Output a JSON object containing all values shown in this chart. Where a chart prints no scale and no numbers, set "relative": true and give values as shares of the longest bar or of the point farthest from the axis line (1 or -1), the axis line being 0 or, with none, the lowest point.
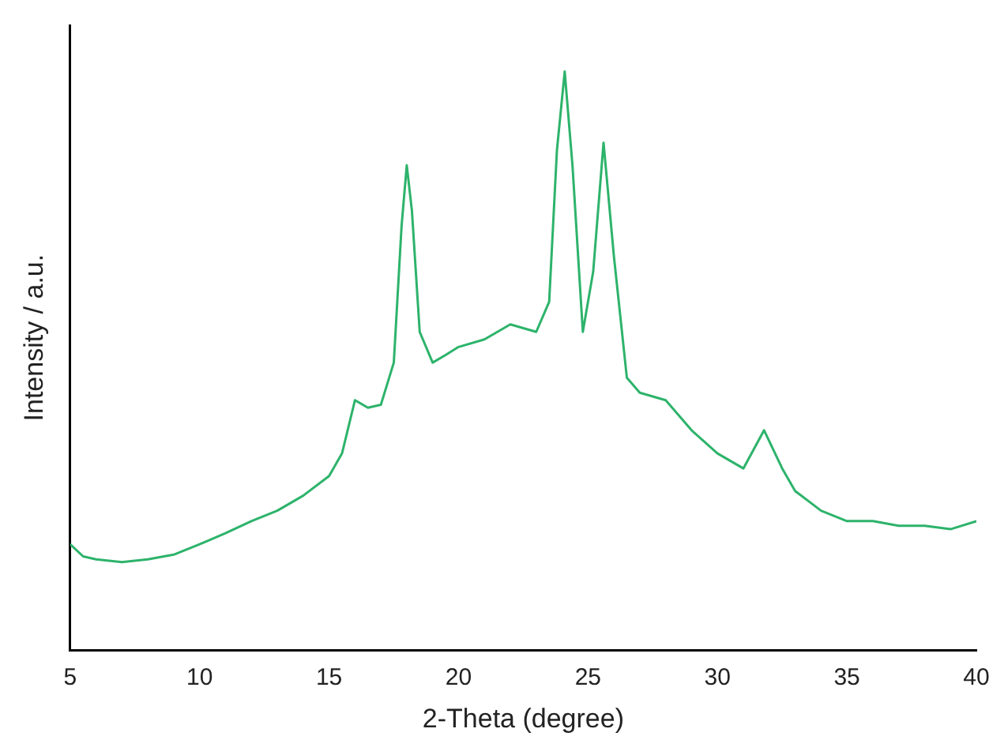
{
  "chart_data": {
    "type": "line",
    "relative": true,
    "xlabel": "2-Theta (degree)",
    "ylabel": "Intensity / a.u.",
    "xlim": [
      5,
      40
    ],
    "xticks": [
      5,
      10,
      15,
      20,
      25,
      30,
      35,
      40
    ],
    "grid": false,
    "legend": false,
    "marker": "none",
    "line_style": "solid",
    "series": [
      {
        "color": "#2db36b",
        "x": [
          5,
          5.5,
          6,
          7,
          8,
          9,
          10,
          11,
          12,
          13,
          14,
          15,
          15.5,
          16,
          16.5,
          17,
          17.5,
          17.8,
          18,
          18.2,
          18.5,
          19,
          19.5,
          20,
          21,
          22,
          23,
          23.5,
          23.8,
          24.1,
          24.4,
          24.8,
          25.2,
          25.6,
          26,
          26.5,
          27,
          28,
          29,
          30,
          31,
          31.8,
          32.5,
          33,
          34,
          35,
          36,
          37,
          38,
          39,
          40
        ],
        "values": [
          0.183,
          0.162,
          0.157,
          0.152,
          0.157,
          0.165,
          0.183,
          0.202,
          0.223,
          0.241,
          0.267,
          0.301,
          0.34,
          0.432,
          0.419,
          0.424,
          0.497,
          0.733,
          0.838,
          0.759,
          0.55,
          0.497,
          0.51,
          0.524,
          0.537,
          0.563,
          0.55,
          0.602,
          0.864,
          1,
          0.838,
          0.55,
          0.654,
          0.877,
          0.681,
          0.471,
          0.445,
          0.432,
          0.38,
          0.34,
          0.314,
          0.38,
          0.314,
          0.275,
          0.241,
          0.223,
          0.223,
          0.215,
          0.215,
          0.209,
          0.223
        ]
      }
    ]
  }
}
